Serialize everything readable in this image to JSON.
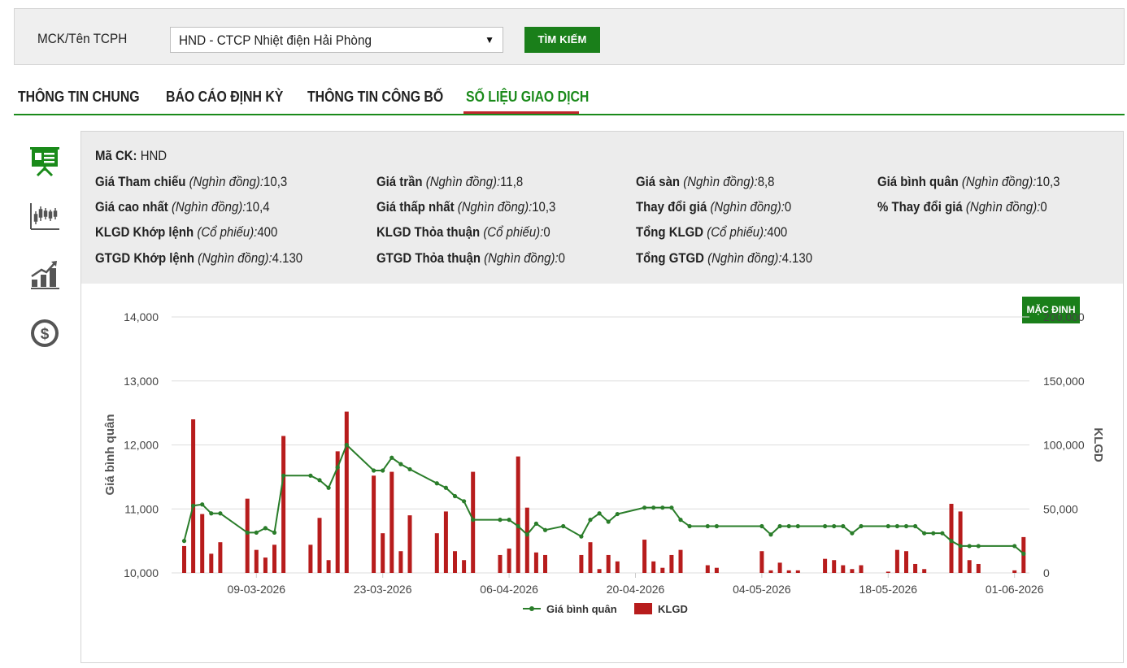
{
  "search": {
    "label": "MCK/Tên TCPH",
    "selected": "HND - CTCP Nhiệt điện Hải Phòng",
    "button": "TÌM KIẾM"
  },
  "tabs": [
    {
      "label": "THÔNG TIN CHUNG",
      "active": false
    },
    {
      "label": "BÁO CÁO ĐỊNH KỲ",
      "active": false
    },
    {
      "label": "THÔNG TIN CÔNG BỐ",
      "active": false
    },
    {
      "label": "SỐ LIỆU GIAO DỊCH",
      "active": true
    }
  ],
  "sidebar_icons": [
    "presentation-icon",
    "candlestick-icon",
    "bar-growth-icon",
    "dollar-coin-icon"
  ],
  "info": {
    "ticker": {
      "key": "Mã CK:",
      "value": " HND"
    },
    "ref_price": {
      "key": "Giá Tham chiếu",
      "unit": "(Nghìn đồng):",
      "value": "10,3"
    },
    "ceiling": {
      "key": "Giá trần",
      "unit": "(Nghìn đồng):",
      "value": "11,8"
    },
    "floor": {
      "key": "Giá sàn",
      "unit": "(Nghìn đồng):",
      "value": "8,8"
    },
    "avg_price": {
      "key": "Giá bình quân",
      "unit": "(Nghìn đồng):",
      "value": "10,3"
    },
    "high": {
      "key": "Giá cao nhất",
      "unit": "(Nghìn đồng):",
      "value": "10,4"
    },
    "low": {
      "key": "Giá thấp nhất",
      "unit": "(Nghìn đồng):",
      "value": "10,3"
    },
    "change": {
      "key": "Thay đổi giá",
      "unit": "(Nghìn đồng):",
      "value": "0"
    },
    "pct_change": {
      "key": "% Thay đổi giá",
      "unit": "(Nghìn đồng):",
      "value": "0"
    },
    "vol_matched": {
      "key": "KLGD Khớp lệnh",
      "unit": "(Cổ phiếu):",
      "value": "400"
    },
    "vol_negotiated": {
      "key": "KLGD Thỏa thuận",
      "unit": "(Cổ phiếu):",
      "value": "0"
    },
    "vol_total": {
      "key": "Tổng KLGD",
      "unit": "(Cổ phiếu):",
      "value": "400"
    },
    "val_matched": {
      "key": "GTGD Khớp lệnh",
      "unit": "(Nghìn đồng):",
      "value": "4.130"
    },
    "val_negotiated": {
      "key": "GTGD Thỏa thuận",
      "unit": "(Nghìn đồng):",
      "value": "0"
    },
    "val_total": {
      "key": "Tổng GTGD",
      "unit": "(Nghìn đồng):",
      "value": "4.130"
    }
  },
  "default_button": "MẶC ĐỊNH",
  "chart_data": {
    "type": "bar+line",
    "colors": {
      "line": "#2a7d2a",
      "bar": "#b71c1c",
      "grid": "#dddddd"
    },
    "ylabel_left": "Giá bình quân",
    "ylabel_right": "KLGD",
    "yticks_left": [
      "14,000",
      "13,000",
      "12,000",
      "11,000",
      "10,000"
    ],
    "ylim_left": [
      10000,
      14000
    ],
    "yticks_right": [
      "200,000",
      "150,000",
      "100,000",
      "50,000",
      "0"
    ],
    "ylim_right": [
      0,
      200000
    ],
    "xticks": [
      "09-03-2026",
      "23-03-2026",
      "06-04-2026",
      "20-04-2026",
      "04-05-2026",
      "18-05-2026",
      "01-06-2026"
    ],
    "xtick_days": [
      9,
      23,
      37,
      51,
      65,
      79,
      93
    ],
    "legend": [
      {
        "name": "Giá bình quân",
        "kind": "line"
      },
      {
        "name": "KLGD",
        "kind": "bar"
      }
    ],
    "bars": [
      [
        1,
        21000
      ],
      [
        2,
        120000
      ],
      [
        3,
        46000
      ],
      [
        4,
        15000
      ],
      [
        5,
        24000
      ],
      [
        8,
        58000
      ],
      [
        9,
        18000
      ],
      [
        10,
        12000
      ],
      [
        11,
        22000
      ],
      [
        12,
        107000
      ],
      [
        15,
        22000
      ],
      [
        16,
        43000
      ],
      [
        17,
        10000
      ],
      [
        18,
        95000
      ],
      [
        19,
        126000
      ],
      [
        22,
        76000
      ],
      [
        23,
        31000
      ],
      [
        24,
        79000
      ],
      [
        25,
        17000
      ],
      [
        26,
        45000
      ],
      [
        29,
        31000
      ],
      [
        30,
        48000
      ],
      [
        31,
        17000
      ],
      [
        32,
        10000
      ],
      [
        33,
        79000
      ],
      [
        36,
        14000
      ],
      [
        37,
        19000
      ],
      [
        38,
        91000
      ],
      [
        39,
        51000
      ],
      [
        40,
        16000
      ],
      [
        41,
        14000
      ],
      [
        45,
        14000
      ],
      [
        46,
        24000
      ],
      [
        47,
        3000
      ],
      [
        48,
        14000
      ],
      [
        49,
        9000
      ],
      [
        52,
        26000
      ],
      [
        53,
        9000
      ],
      [
        54,
        4000
      ],
      [
        55,
        14000
      ],
      [
        56,
        18000
      ],
      [
        59,
        6000
      ],
      [
        60,
        4000
      ],
      [
        65,
        17000
      ],
      [
        66,
        2000
      ],
      [
        67,
        8000
      ],
      [
        68,
        2000
      ],
      [
        69,
        2000
      ],
      [
        72,
        11000
      ],
      [
        73,
        10000
      ],
      [
        74,
        6000
      ],
      [
        75,
        3000
      ],
      [
        76,
        6000
      ],
      [
        79,
        1000
      ],
      [
        80,
        18000
      ],
      [
        81,
        17000
      ],
      [
        82,
        7000
      ],
      [
        83,
        3000
      ],
      [
        86,
        54000
      ],
      [
        87,
        48000
      ],
      [
        88,
        10000
      ],
      [
        89,
        7000
      ],
      [
        93,
        2000
      ],
      [
        94,
        28000
      ]
    ],
    "price": [
      [
        1,
        10500
      ],
      [
        2,
        11050
      ],
      [
        3,
        11070
      ],
      [
        4,
        10930
      ],
      [
        5,
        10930
      ],
      [
        8,
        10630
      ],
      [
        9,
        10630
      ],
      [
        10,
        10700
      ],
      [
        11,
        10630
      ],
      [
        12,
        11520
      ],
      [
        15,
        11520
      ],
      [
        16,
        11450
      ],
      [
        17,
        11330
      ],
      [
        18,
        11650
      ],
      [
        19,
        12000
      ],
      [
        22,
        11600
      ],
      [
        23,
        11600
      ],
      [
        24,
        11800
      ],
      [
        25,
        11700
      ],
      [
        26,
        11620
      ],
      [
        29,
        11400
      ],
      [
        30,
        11330
      ],
      [
        31,
        11200
      ],
      [
        32,
        11120
      ],
      [
        33,
        10830
      ],
      [
        36,
        10830
      ],
      [
        37,
        10830
      ],
      [
        38,
        10730
      ],
      [
        39,
        10600
      ],
      [
        40,
        10770
      ],
      [
        41,
        10670
      ],
      [
        43,
        10730
      ],
      [
        45,
        10570
      ],
      [
        46,
        10830
      ],
      [
        47,
        10930
      ],
      [
        48,
        10800
      ],
      [
        49,
        10920
      ],
      [
        52,
        11020
      ],
      [
        53,
        11020
      ],
      [
        54,
        11020
      ],
      [
        55,
        11020
      ],
      [
        56,
        10830
      ],
      [
        57,
        10730
      ],
      [
        59,
        10730
      ],
      [
        60,
        10730
      ],
      [
        65,
        10730
      ],
      [
        66,
        10600
      ],
      [
        67,
        10730
      ],
      [
        68,
        10730
      ],
      [
        69,
        10730
      ],
      [
        72,
        10730
      ],
      [
        73,
        10730
      ],
      [
        74,
        10730
      ],
      [
        75,
        10620
      ],
      [
        76,
        10730
      ],
      [
        79,
        10730
      ],
      [
        80,
        10730
      ],
      [
        81,
        10730
      ],
      [
        82,
        10730
      ],
      [
        83,
        10620
      ],
      [
        84,
        10620
      ],
      [
        85,
        10620
      ],
      [
        86,
        10500
      ],
      [
        87,
        10420
      ],
      [
        88,
        10420
      ],
      [
        89,
        10420
      ],
      [
        93,
        10420
      ],
      [
        94,
        10300
      ]
    ]
  }
}
